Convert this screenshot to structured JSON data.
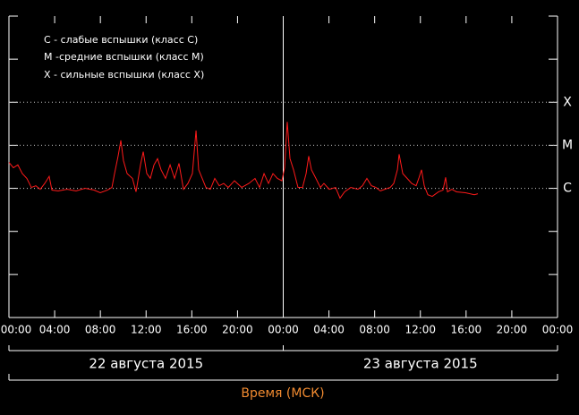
{
  "chart_data": {
    "type": "line",
    "legend": [
      "C - слабые вспышки (класс C)",
      "M -средние вспышки (класс M)",
      "X - сильные вспышки (класс X)"
    ],
    "x_label": "Время (МСК)",
    "days": [
      {
        "label": "22 августа 2015",
        "start": 0,
        "end": 24
      },
      {
        "label": "23 августа 2015",
        "start": 24,
        "end": 48
      }
    ],
    "day_boundary": 24,
    "log_y": true,
    "ylim": [
      1e-09,
      0.01
    ],
    "yticks": [
      1e-09,
      1e-08,
      1e-07,
      1e-06,
      1e-05,
      0.0001,
      0.001,
      0.01
    ],
    "levels": [
      {
        "value": 0.0001,
        "label": "X"
      },
      {
        "value": 1e-05,
        "label": "M"
      },
      {
        "value": 1e-06,
        "label": "C"
      }
    ],
    "xlim": [
      0,
      48
    ],
    "xticks": [
      {
        "value": 0,
        "label": "00:00"
      },
      {
        "value": 4,
        "label": "04:00"
      },
      {
        "value": 8,
        "label": "08:00"
      },
      {
        "value": 12,
        "label": "12:00"
      },
      {
        "value": 16,
        "label": "16:00"
      },
      {
        "value": 20,
        "label": "20:00"
      },
      {
        "value": 24,
        "label": "00:00"
      },
      {
        "value": 28,
        "label": "04:00"
      },
      {
        "value": 32,
        "label": "08:00"
      },
      {
        "value": 36,
        "label": "12:00"
      },
      {
        "value": 40,
        "label": "16:00"
      },
      {
        "value": 44,
        "label": "20:00"
      },
      {
        "value": 48,
        "label": "00:00"
      }
    ],
    "series": [
      {
        "color": "#ff1a1a",
        "x": [
          0,
          0.39,
          0.78,
          1.17,
          1.57,
          1.96,
          2.35,
          2.74,
          3.13,
          3.52,
          3.76,
          4.31,
          5.09,
          5.87,
          6.66,
          7.44,
          7.99,
          8.61,
          9.01,
          9.24,
          9.55,
          9.79,
          10.02,
          10.34,
          10.81,
          11.12,
          11.51,
          11.75,
          12.06,
          12.37,
          12.69,
          13.0,
          13.31,
          13.7,
          14.1,
          14.49,
          14.88,
          15.27,
          15.66,
          16.05,
          16.37,
          16.6,
          16.91,
          17.23,
          17.62,
          18.01,
          18.4,
          18.79,
          19.19,
          19.73,
          20.36,
          20.99,
          21.53,
          21.93,
          22.32,
          22.71,
          23.1,
          23.49,
          23.88,
          24.12,
          24.35,
          24.59,
          24.9,
          25.29,
          25.69,
          26.0,
          26.23,
          26.47,
          26.86,
          27.25,
          27.56,
          28.03,
          28.58,
          28.97,
          29.37,
          29.91,
          30.54,
          30.93,
          31.32,
          31.71,
          32.11,
          32.5,
          32.89,
          33.36,
          33.67,
          33.99,
          34.14,
          34.46,
          34.85,
          35.24,
          35.63,
          35.86,
          36.1,
          36.34,
          36.65,
          37.04,
          37.59,
          37.98,
          38.21,
          38.37,
          38.76,
          39.15,
          39.94,
          40.72,
          41.03
        ],
        "values": [
          4e-06,
          3e-06,
          3.5e-06,
          2.2e-06,
          1.7e-06,
          1.05e-06,
          1.15e-06,
          9.5e-07,
          1.3e-06,
          1.9e-06,
          9.1e-07,
          8.7e-07,
          9.5e-07,
          8.7e-07,
          1e-06,
          9.1e-07,
          7.9e-07,
          9.1e-07,
          1.05e-06,
          2.2e-06,
          5.6e-06,
          1.3e-05,
          4.4e-06,
          2.2e-06,
          1.7e-06,
          8.3e-07,
          3.5e-06,
          7.1e-06,
          2.2e-06,
          1.7e-06,
          3.5e-06,
          4.9e-06,
          2.7e-06,
          1.7e-06,
          3.5e-06,
          1.7e-06,
          3.8e-06,
          9.5e-07,
          1.3e-06,
          2.2e-06,
          2.2e-05,
          2.7e-06,
          1.7e-06,
          1.05e-06,
          9.5e-07,
          1.7e-06,
          1.15e-06,
          1.3e-06,
          1.05e-06,
          1.5e-06,
          1.05e-06,
          1.3e-06,
          1.7e-06,
          1.05e-06,
          2.2e-06,
          1.3e-06,
          2.2e-06,
          1.7e-06,
          1.5e-06,
          3e-06,
          3.5e-05,
          4.9e-06,
          2.7e-06,
          1.05e-06,
          1.05e-06,
          2.2e-06,
          5.6e-06,
          2.7e-06,
          1.7e-06,
          1.05e-06,
          1.3e-06,
          9.5e-07,
          1.05e-06,
          5.9e-07,
          8.3e-07,
          1.05e-06,
          9.5e-07,
          1.15e-06,
          1.7e-06,
          1.15e-06,
          1.05e-06,
          8.7e-07,
          9.5e-07,
          1.05e-06,
          1.3e-06,
          2.7e-06,
          6.2e-06,
          2.2e-06,
          1.7e-06,
          1.3e-06,
          1.15e-06,
          1.7e-06,
          2.7e-06,
          1.15e-06,
          7.1e-07,
          6.5e-07,
          8.3e-07,
          9.1e-07,
          1.8e-06,
          8.3e-07,
          9.5e-07,
          8.3e-07,
          7.9e-07,
          7.1e-07,
          7.5e-07
        ]
      }
    ]
  }
}
